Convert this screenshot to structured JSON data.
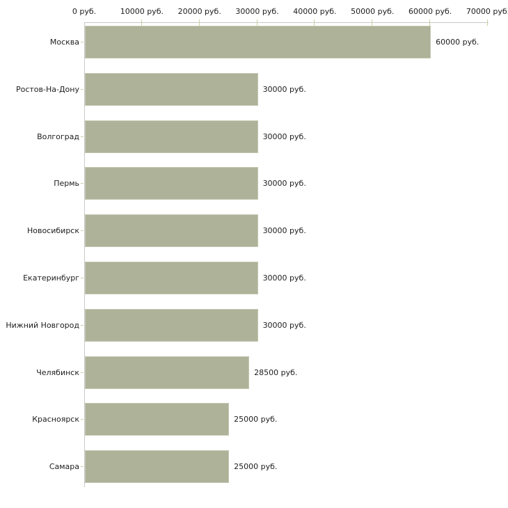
{
  "chart_data": {
    "type": "bar",
    "orientation": "horizontal",
    "title": "",
    "xlabel": "",
    "ylabel": "",
    "xlim": [
      0,
      70000
    ],
    "grid": false,
    "legend": false,
    "x_ticks": [
      {
        "value": 0,
        "label": "0 руб."
      },
      {
        "value": 10000,
        "label": "10000 руб."
      },
      {
        "value": 20000,
        "label": "20000 руб."
      },
      {
        "value": 30000,
        "label": "30000 руб."
      },
      {
        "value": 40000,
        "label": "40000 руб."
      },
      {
        "value": 50000,
        "label": "50000 руб."
      },
      {
        "value": 60000,
        "label": "60000 руб."
      },
      {
        "value": 70000,
        "label": "70000 руб."
      }
    ],
    "categories": [
      "Москва",
      "Ростов-На-Дону",
      "Волгоград",
      "Пермь",
      "Новосибирск",
      "Екатеринбург",
      "Нижний Новгород",
      "Челябинск",
      "Красноярск",
      "Самара"
    ],
    "values": [
      60000,
      30000,
      30000,
      30000,
      30000,
      30000,
      30000,
      28500,
      25000,
      25000
    ],
    "value_labels": [
      "60000 руб.",
      "30000 руб.",
      "30000 руб.",
      "30000 руб.",
      "30000 руб.",
      "30000 руб.",
      "30000 руб.",
      "28500 руб.",
      "25000 руб.",
      "25000 руб."
    ],
    "colors": {
      "bar_fill": "#aeb299",
      "bar_border": "#c4c8b1",
      "axis_line": "#c6c6c6",
      "x_tick_mark": "#cfcda2",
      "y_tick_mark": "#cdcba5",
      "text": "#1c1c1c",
      "background": "#ffffff"
    }
  }
}
